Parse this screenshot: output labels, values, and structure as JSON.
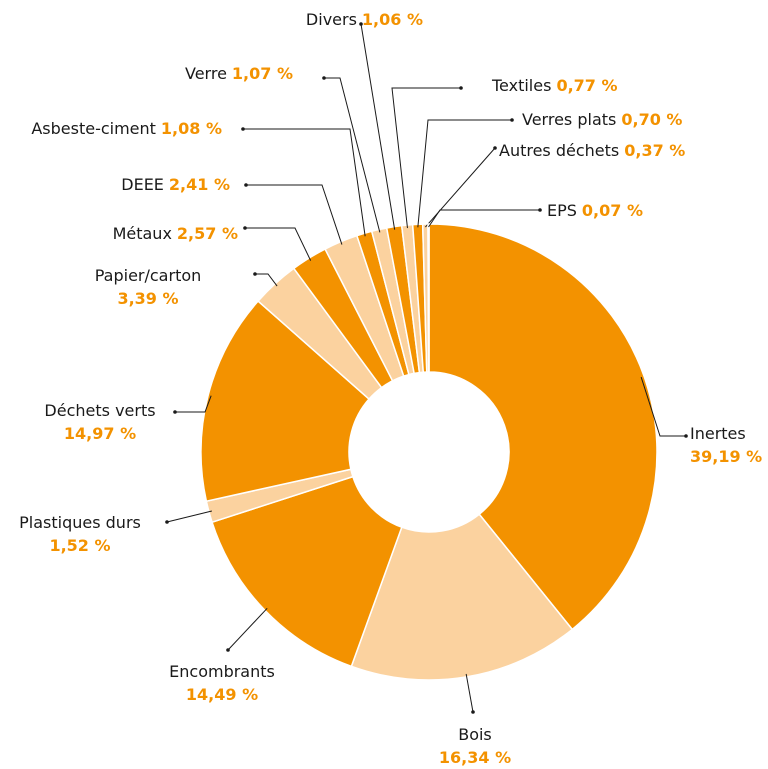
{
  "chart_data": {
    "type": "donut",
    "categories": [
      "Inertes",
      "Bois",
      "Encombrants",
      "Plastiques durs",
      "Déchets verts",
      "Papier/carton",
      "Métaux",
      "DEEE",
      "Asbeste-ciment",
      "Verre",
      "Divers",
      "Textiles",
      "Verres plats",
      "Autres déchets",
      "EPS"
    ],
    "values": [
      39.19,
      16.34,
      14.49,
      1.52,
      14.97,
      3.39,
      2.57,
      2.41,
      1.08,
      1.07,
      1.06,
      0.77,
      0.7,
      0.37,
      0.07
    ],
    "value_labels": [
      "39,19 %",
      "16,34 %",
      "14,49 %",
      "1,52 %",
      "14,97 %",
      "3,39 %",
      "2,57 %",
      "2,41 %",
      "1,08 %",
      "1,07 %",
      "1,06 %",
      "0,77 %",
      "0,70 %",
      "0,37 %",
      "0,07 %"
    ],
    "colors": [
      "#f39200",
      "#fbd29f",
      "#f39200",
      "#fbd29f",
      "#f39200",
      "#fbd29f",
      "#f39200",
      "#fbd29f",
      "#f39200",
      "#fbd29f",
      "#f39200",
      "#fbd29f",
      "#f39200",
      "#fbd29f",
      "#f39200"
    ]
  }
}
